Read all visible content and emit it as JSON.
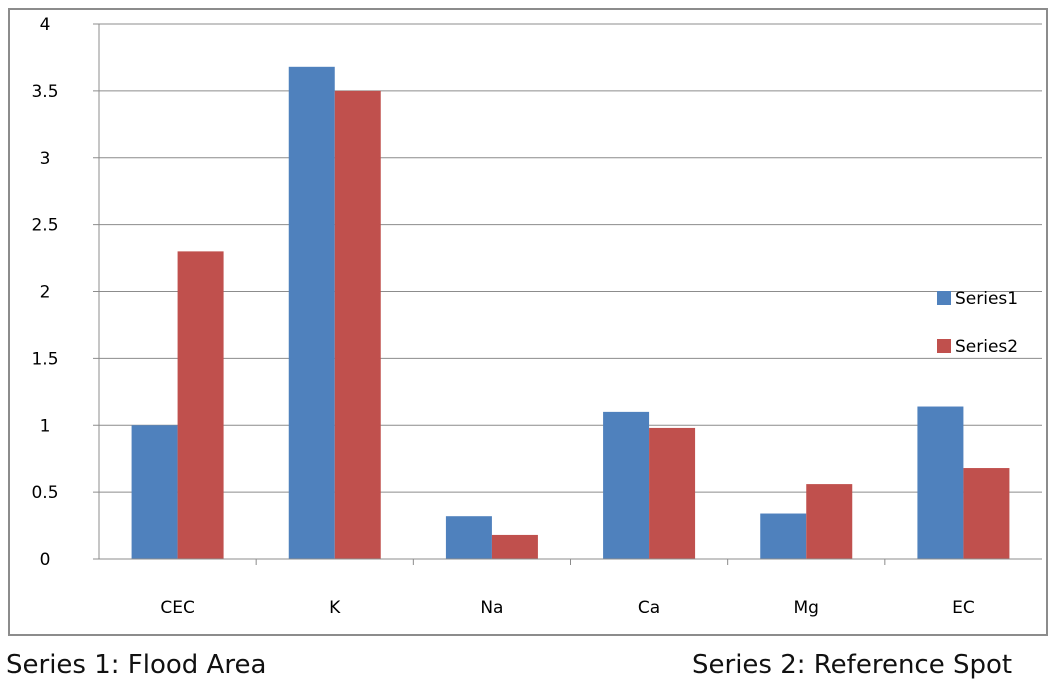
{
  "chart_data": {
    "type": "bar",
    "categories": [
      "CEC",
      "K",
      "Na",
      "Ca",
      "Mg",
      "EC"
    ],
    "series": [
      {
        "name": "Series1",
        "color": "#4F81BD",
        "values": [
          1.0,
          3.68,
          0.32,
          1.1,
          0.34,
          1.14
        ]
      },
      {
        "name": "Series2",
        "color": "#C0504D",
        "values": [
          2.3,
          3.5,
          0.18,
          0.98,
          0.56,
          0.68
        ]
      }
    ],
    "ylim": [
      0,
      4
    ],
    "yticks": [
      "0",
      "0.5",
      "1",
      "1.5",
      "2",
      "2.5",
      "3",
      "3.5",
      "4"
    ],
    "ytick_values": [
      0,
      0.5,
      1,
      1.5,
      2,
      2.5,
      3,
      3.5,
      4
    ],
    "grid": true,
    "legend_position": "right"
  },
  "captions": {
    "left": "Series 1: Flood Area",
    "right": "Series 2: Reference Spot"
  }
}
